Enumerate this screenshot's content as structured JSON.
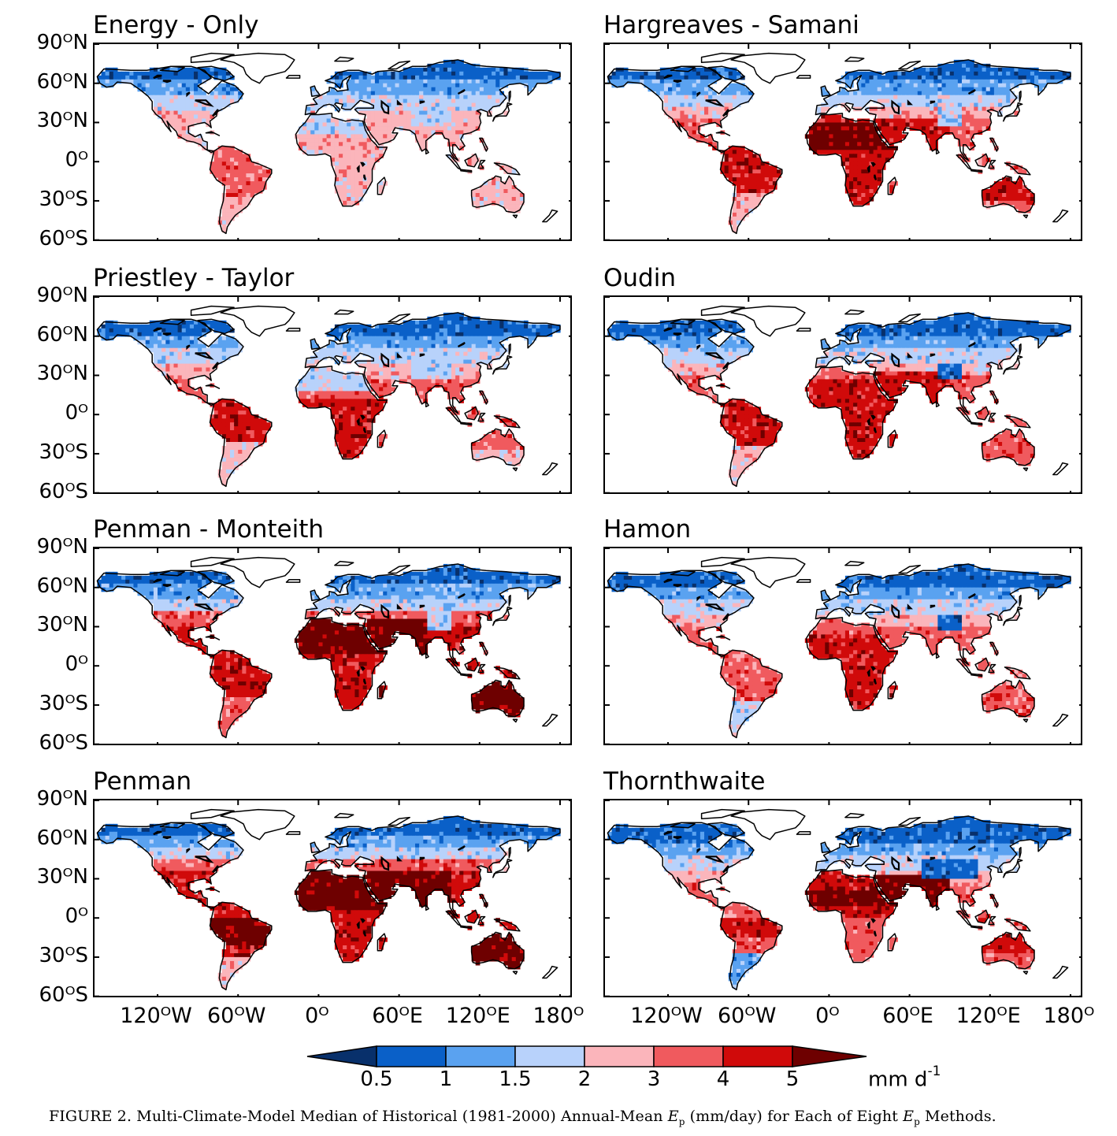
{
  "panels": [
    {
      "title": "Energy - Only",
      "scheme": "energy"
    },
    {
      "title": "Hargreaves - Samani",
      "scheme": "hargreaves"
    },
    {
      "title": "Priestley - Taylor",
      "scheme": "priestley"
    },
    {
      "title": "Oudin",
      "scheme": "oudin"
    },
    {
      "title": "Penman - Monteith",
      "scheme": "penmanm"
    },
    {
      "title": "Hamon",
      "scheme": "hamon"
    },
    {
      "title": "Penman",
      "scheme": "penman"
    },
    {
      "title": "Thornthwaite",
      "scheme": "thornthwaite"
    }
  ],
  "y_ticks": [
    "90ᴼN",
    "60ᴼN",
    "30ᴼN",
    "0ᴼ",
    "30ᴼS",
    "60ᴼS"
  ],
  "x_ticks": [
    "120ᴼW",
    "60ᴼW",
    "0ᴼ",
    "60ᴼE",
    "120ᴼE",
    "180ᴼ"
  ],
  "colorbar": {
    "ticks": [
      "0.5",
      "1",
      "1.5",
      "2",
      "3",
      "4",
      "5"
    ],
    "unit_base": "mm d",
    "unit_exp": "-1",
    "colors": [
      "#08306b",
      "#0a60c8",
      "#5aa2f0",
      "#b8d2fb",
      "#fbb5bb",
      "#f05a5e",
      "#d00a0a",
      "#6e0000"
    ]
  },
  "caption": {
    "prefix": "FIGURE 2.  Multi-Climate-Model Median of Historical (1981-2000) Annual-Mean ",
    "var": "E",
    "sub": "p",
    "middle": " (mm/day) for Each of Eight ",
    "suffix": " Methods."
  }
}
